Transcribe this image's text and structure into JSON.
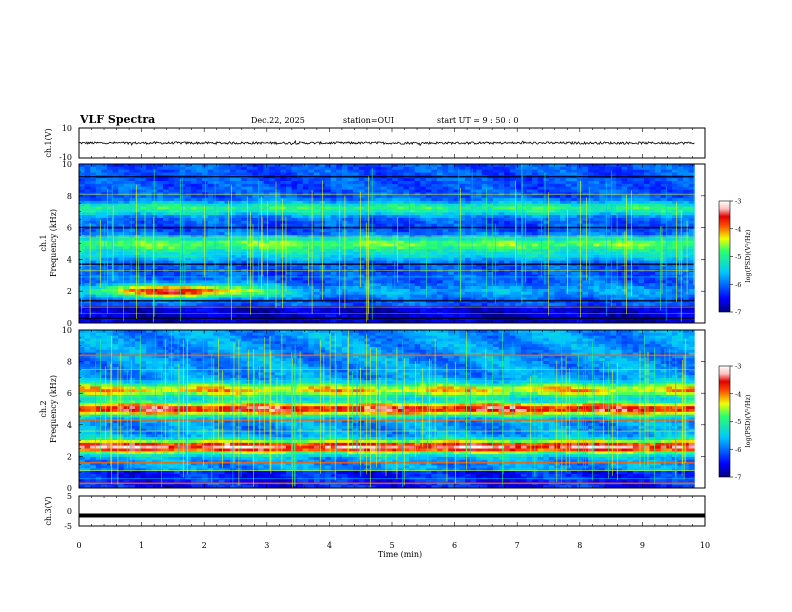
{
  "header": {
    "title": "VLF Spectra",
    "date": "Dec.22, 2025",
    "station": "station=OUI",
    "start": "start  UT =   9 : 50 : 0"
  },
  "chart_data": [
    {
      "type": "line",
      "name": "waveform-ch1",
      "ylabel": "ch.1(V)",
      "ylim": [
        -10,
        10
      ],
      "yticks": [
        "10",
        "-10"
      ],
      "baseline": 0,
      "xlim": [
        0,
        10
      ]
    },
    {
      "type": "heatmap",
      "name": "spectrogram-ch1",
      "ylabel": [
        "ch.1",
        "Frequency  (kHz)"
      ],
      "ylim": [
        0,
        10
      ],
      "yticks": [
        "0",
        "2",
        "4",
        "6",
        "8",
        "10"
      ],
      "xlim": [
        0,
        10
      ],
      "data_end_min": 9.83,
      "bands": [
        {
          "freq_khz": 2.0,
          "level": 0.55
        },
        {
          "freq_khz": 4.3,
          "level": 0.18
        },
        {
          "freq_khz": 5.0,
          "level": 0.35
        },
        {
          "freq_khz": 7.2,
          "level": 0.3
        }
      ],
      "colorbar": {
        "label": "log(PSD)(V²/Hz)",
        "ticks": [
          "-3",
          "-4",
          "-5",
          "-6",
          "-7"
        ],
        "range": [
          -7,
          -3
        ]
      }
    },
    {
      "type": "heatmap",
      "name": "spectrogram-ch2",
      "ylabel": [
        "ch.2",
        "Frequency  (kHz)"
      ],
      "ylim": [
        0,
        10
      ],
      "yticks": [
        "0",
        "2",
        "4",
        "6",
        "8",
        "10"
      ],
      "xlim": [
        0,
        10
      ],
      "data_end_min": 9.83,
      "bands": [
        {
          "freq_khz": 2.6,
          "level": 0.62
        },
        {
          "freq_khz": 5.0,
          "level": 0.58
        },
        {
          "freq_khz": 6.2,
          "level": 0.4
        }
      ],
      "colorbar": {
        "label": "log(PSD)(V²/Hz)",
        "ticks": [
          "-3",
          "-4",
          "-5",
          "-6",
          "-7"
        ],
        "range": [
          -7,
          -3
        ]
      }
    },
    {
      "type": "line",
      "name": "waveform-ch3",
      "ylabel": "ch.3(V)",
      "ylim": [
        -5,
        5
      ],
      "yticks": [
        "5",
        "0",
        "-5"
      ],
      "baseline": -1.5,
      "xlim": [
        0,
        10
      ]
    }
  ],
  "xaxis": {
    "label": "Time  (min)",
    "ticks": [
      "0",
      "1",
      "2",
      "3",
      "4",
      "5",
      "6",
      "7",
      "8",
      "9",
      "10"
    ]
  }
}
